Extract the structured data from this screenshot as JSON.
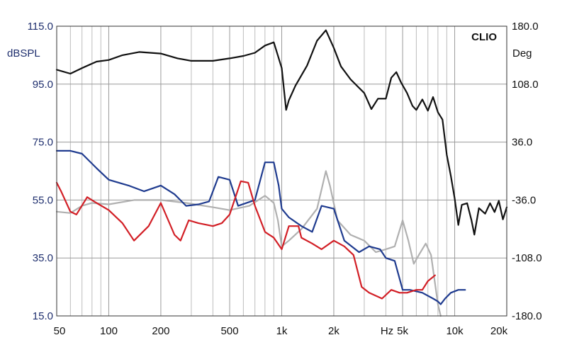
{
  "chart_data": {
    "type": "line",
    "brand": "CLIO",
    "ylabel_left": "dBSPL",
    "ylabel_right": "Deg",
    "x_unit_label": "Hz",
    "x_scale": "log",
    "xlim": [
      50,
      20000
    ],
    "ylim_left": [
      15,
      115
    ],
    "ylim_right": [
      -180,
      180
    ],
    "grid": true,
    "left_ticks": [
      "115.0",
      "95.0",
      "75.0",
      "55.0",
      "35.0",
      "15.0"
    ],
    "left_tick_values": [
      115,
      95,
      75,
      55,
      35,
      15
    ],
    "right_ticks": [
      "180.0",
      "108.0",
      "36.0",
      "-36.0",
      "-108.0",
      "-180.0"
    ],
    "right_tick_values": [
      180,
      108,
      36,
      -36,
      -108,
      -180
    ],
    "x_ticks": [
      {
        "value": 50,
        "label": "50"
      },
      {
        "value": 100,
        "label": "100"
      },
      {
        "value": 200,
        "label": "200"
      },
      {
        "value": 500,
        "label": "500"
      },
      {
        "value": 1000,
        "label": "1k"
      },
      {
        "value": 2000,
        "label": "2k"
      },
      {
        "value": 5000,
        "label": "5k"
      },
      {
        "value": 10000,
        "label": "10k"
      },
      {
        "value": 20000,
        "label": "20k"
      }
    ],
    "series": [
      {
        "color": "#b0b0b0",
        "points": [
          [
            50,
            51
          ],
          [
            60,
            50.5
          ],
          [
            70,
            53
          ],
          [
            80,
            54
          ],
          [
            100,
            53.5
          ],
          [
            140,
            55
          ],
          [
            200,
            55
          ],
          [
            280,
            54
          ],
          [
            400,
            52.5
          ],
          [
            500,
            51.5
          ],
          [
            650,
            53
          ],
          [
            800,
            56.5
          ],
          [
            900,
            54
          ],
          [
            950,
            48
          ],
          [
            1000,
            39
          ],
          [
            1100,
            41
          ],
          [
            1300,
            45
          ],
          [
            1600,
            52
          ],
          [
            1800,
            65
          ],
          [
            1900,
            60
          ],
          [
            2100,
            48
          ],
          [
            2500,
            43
          ],
          [
            3000,
            41
          ],
          [
            3500,
            37
          ],
          [
            4000,
            38
          ],
          [
            4500,
            39
          ],
          [
            5000,
            48
          ],
          [
            5400,
            41
          ],
          [
            5800,
            33
          ],
          [
            6200,
            36
          ],
          [
            6800,
            40
          ],
          [
            7300,
            36
          ],
          [
            8000,
            19
          ],
          [
            8300,
            15
          ]
        ]
      },
      {
        "color": "#1f3b8f",
        "points": [
          [
            50,
            72
          ],
          [
            60,
            72
          ],
          [
            70,
            71
          ],
          [
            85,
            66
          ],
          [
            100,
            62
          ],
          [
            130,
            60
          ],
          [
            160,
            58
          ],
          [
            200,
            60
          ],
          [
            240,
            57
          ],
          [
            280,
            53
          ],
          [
            330,
            53.5
          ],
          [
            380,
            54.5
          ],
          [
            430,
            63
          ],
          [
            500,
            62
          ],
          [
            560,
            53
          ],
          [
            700,
            55
          ],
          [
            800,
            68
          ],
          [
            900,
            68
          ],
          [
            960,
            60
          ],
          [
            1000,
            52
          ],
          [
            1100,
            49
          ],
          [
            1300,
            46
          ],
          [
            1500,
            44
          ],
          [
            1700,
            53
          ],
          [
            2000,
            52
          ],
          [
            2300,
            41
          ],
          [
            2800,
            37
          ],
          [
            3200,
            39
          ],
          [
            3700,
            38
          ],
          [
            4000,
            35
          ],
          [
            4500,
            34
          ],
          [
            5000,
            24
          ],
          [
            5500,
            24
          ],
          [
            6500,
            23
          ],
          [
            7500,
            21
          ],
          [
            8000,
            20
          ],
          [
            8300,
            19
          ],
          [
            8800,
            21
          ],
          [
            9500,
            23
          ],
          [
            10500,
            24
          ],
          [
            11500,
            24
          ]
        ]
      },
      {
        "color": "#d21f26",
        "points": [
          [
            50,
            61
          ],
          [
            53,
            58
          ],
          [
            60,
            51
          ],
          [
            65,
            50
          ],
          [
            75,
            56
          ],
          [
            85,
            54
          ],
          [
            100,
            51.5
          ],
          [
            120,
            47
          ],
          [
            140,
            41
          ],
          [
            170,
            46
          ],
          [
            200,
            54
          ],
          [
            240,
            43
          ],
          [
            260,
            41
          ],
          [
            290,
            48
          ],
          [
            330,
            47
          ],
          [
            400,
            46
          ],
          [
            450,
            47
          ],
          [
            500,
            50
          ],
          [
            580,
            61.5
          ],
          [
            640,
            61
          ],
          [
            700,
            53
          ],
          [
            800,
            44
          ],
          [
            900,
            42
          ],
          [
            1000,
            38
          ],
          [
            1100,
            46
          ],
          [
            1250,
            46
          ],
          [
            1300,
            42
          ],
          [
            1500,
            40
          ],
          [
            1700,
            38
          ],
          [
            2000,
            41
          ],
          [
            2300,
            39
          ],
          [
            2600,
            36
          ],
          [
            2900,
            25
          ],
          [
            3200,
            23
          ],
          [
            3800,
            21
          ],
          [
            4300,
            24
          ],
          [
            4800,
            23
          ],
          [
            5300,
            23
          ],
          [
            6000,
            24
          ],
          [
            6500,
            24
          ],
          [
            7000,
            27
          ],
          [
            7700,
            29
          ]
        ]
      },
      {
        "color": "#111111",
        "axis": "right",
        "points": [
          [
            50,
            126
          ],
          [
            60,
            121
          ],
          [
            70,
            128
          ],
          [
            85,
            136
          ],
          [
            100,
            138
          ],
          [
            120,
            144
          ],
          [
            150,
            148
          ],
          [
            200,
            146
          ],
          [
            250,
            140
          ],
          [
            300,
            137
          ],
          [
            400,
            137
          ],
          [
            500,
            140
          ],
          [
            600,
            143
          ],
          [
            700,
            147
          ],
          [
            800,
            156
          ],
          [
            900,
            160
          ],
          [
            1000,
            128
          ],
          [
            1060,
            76
          ],
          [
            1100,
            88
          ],
          [
            1200,
            106
          ],
          [
            1400,
            131
          ],
          [
            1600,
            162
          ],
          [
            1800,
            175
          ],
          [
            2000,
            153
          ],
          [
            2200,
            130
          ],
          [
            2500,
            114
          ],
          [
            3000,
            97
          ],
          [
            3300,
            77
          ],
          [
            3600,
            90
          ],
          [
            4000,
            90
          ],
          [
            4300,
            116
          ],
          [
            4600,
            123
          ],
          [
            4900,
            110
          ],
          [
            5300,
            97
          ],
          [
            5700,
            81
          ],
          [
            6000,
            76
          ],
          [
            6500,
            89
          ],
          [
            7000,
            75
          ],
          [
            7500,
            92
          ],
          [
            8000,
            73
          ],
          [
            8500,
            64
          ],
          [
            9000,
            20
          ],
          [
            9500,
            -6
          ],
          [
            10000,
            -34
          ],
          [
            10500,
            -67
          ],
          [
            11000,
            -42
          ],
          [
            11800,
            -40
          ],
          [
            12500,
            -61
          ],
          [
            13000,
            -79
          ],
          [
            13800,
            -46
          ],
          [
            15000,
            -53
          ],
          [
            16000,
            -40
          ],
          [
            17000,
            -51
          ],
          [
            18000,
            -37
          ],
          [
            19000,
            -60
          ],
          [
            20000,
            -45
          ]
        ]
      }
    ]
  }
}
